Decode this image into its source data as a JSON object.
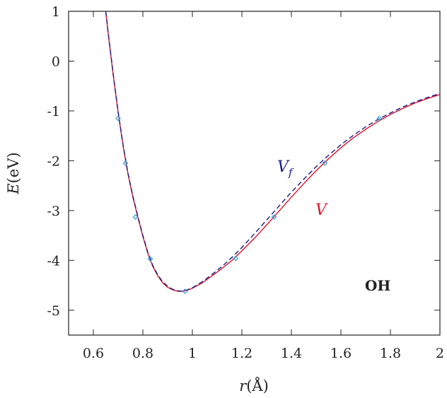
{
  "chart_data": {
    "type": "line",
    "xlabel_italic": "r",
    "xlabel_rest": "(Å)",
    "ylabel_italic": "E",
    "ylabel_rest": "(eV)",
    "xlim": [
      0.5,
      2.0
    ],
    "ylim": [
      -5.5,
      1.0
    ],
    "x_ticks": [
      "0.6",
      "0.8",
      "1",
      "1.2",
      "1.4",
      "1.6",
      "1.8",
      "2"
    ],
    "x_tick_values": [
      0.6,
      0.8,
      1.0,
      1.2,
      1.4,
      1.6,
      1.8,
      2.0
    ],
    "y_ticks": [
      "1",
      "0",
      "-1",
      "-2",
      "-3",
      "-4",
      "-5"
    ],
    "y_tick_values": [
      1,
      0,
      -1,
      -2,
      -3,
      -4,
      -5
    ],
    "grid": false,
    "annotation": "OH",
    "series": [
      {
        "name": "V",
        "color": "#e0142a",
        "style": "solid",
        "x": [
          0.65,
          0.66,
          0.68,
          0.7,
          0.72,
          0.74,
          0.76,
          0.78,
          0.8,
          0.82,
          0.84,
          0.86,
          0.88,
          0.9,
          0.92,
          0.94,
          0.96,
          0.98,
          1.0,
          1.04,
          1.08,
          1.12,
          1.16,
          1.2,
          1.25,
          1.3,
          1.35,
          1.4,
          1.45,
          1.5,
          1.55,
          1.6,
          1.65,
          1.7,
          1.75,
          1.8,
          1.85,
          1.9,
          1.95,
          2.0
        ],
        "y": [
          1.0,
          0.55,
          -0.27,
          -1.03,
          -1.7,
          -2.27,
          -2.74,
          -3.14,
          -3.52,
          -3.86,
          -4.12,
          -4.31,
          -4.45,
          -4.54,
          -4.59,
          -4.62,
          -4.62,
          -4.6,
          -4.56,
          -4.45,
          -4.31,
          -4.16,
          -4.0,
          -3.81,
          -3.56,
          -3.29,
          -3.01,
          -2.73,
          -2.46,
          -2.2,
          -1.96,
          -1.74,
          -1.54,
          -1.37,
          -1.21,
          -1.07,
          -0.95,
          -0.84,
          -0.75,
          -0.67
        ]
      },
      {
        "name": "V_f",
        "label_main": "V",
        "label_sub": "f",
        "color": "#1c1c8c",
        "style": "dashed",
        "x": [
          0.65,
          0.66,
          0.68,
          0.7,
          0.72,
          0.74,
          0.76,
          0.78,
          0.8,
          0.82,
          0.84,
          0.86,
          0.88,
          0.9,
          0.92,
          0.94,
          0.96,
          0.98,
          1.0,
          1.04,
          1.08,
          1.12,
          1.16,
          1.2,
          1.25,
          1.3,
          1.35,
          1.4,
          1.45,
          1.5,
          1.55,
          1.6,
          1.65,
          1.7,
          1.75,
          1.8,
          1.85,
          1.9,
          1.95,
          2.0
        ],
        "y": [
          1.0,
          0.57,
          -0.25,
          -1.01,
          -1.68,
          -2.25,
          -2.72,
          -3.12,
          -3.5,
          -3.84,
          -4.1,
          -4.29,
          -4.43,
          -4.52,
          -4.58,
          -4.61,
          -4.62,
          -4.59,
          -4.55,
          -4.43,
          -4.28,
          -4.12,
          -3.94,
          -3.74,
          -3.47,
          -3.19,
          -2.91,
          -2.63,
          -2.37,
          -2.12,
          -1.89,
          -1.68,
          -1.49,
          -1.32,
          -1.17,
          -1.04,
          -0.92,
          -0.82,
          -0.73,
          -0.65
        ]
      },
      {
        "name": "points",
        "color": "#2aa0d6",
        "style": "markers",
        "x": [
          0.7,
          0.73,
          0.77,
          0.83,
          0.97,
          1.175,
          1.33,
          1.535,
          1.755
        ],
        "y": [
          -1.15,
          -2.05,
          -3.13,
          -3.97,
          -4.62,
          -3.96,
          -3.13,
          -2.05,
          -1.15
        ]
      }
    ]
  }
}
